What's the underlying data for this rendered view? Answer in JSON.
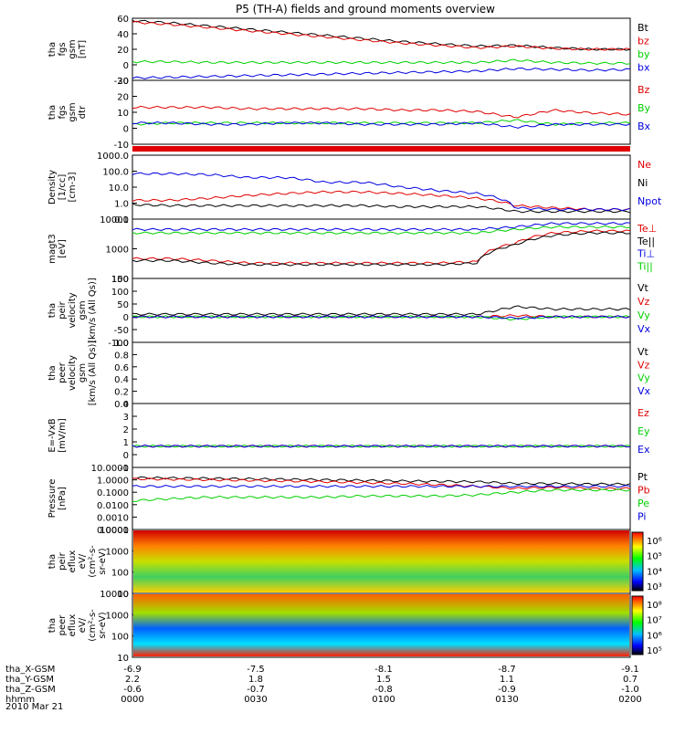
{
  "title": "P5 (TH-A) fields and ground moments overview",
  "date_label": "2010 Mar 21",
  "colors": {
    "black": "#000000",
    "red": "#e00000",
    "green": "#00d000",
    "blue": "#0000e0"
  },
  "colorbar_low": [
    "10⁰",
    "10²",
    "10⁴",
    "10³"
  ],
  "orbit": {
    "rows": [
      {
        "label": "tha_X-GSM",
        "values": [
          "-6.9",
          "-7.5",
          "-8.1",
          "-8.7",
          "-9.1"
        ]
      },
      {
        "label": "tha_Y-GSM",
        "values": [
          "2.2",
          "1.8",
          "1.5",
          "1.1",
          "0.7"
        ]
      },
      {
        "label": "tha_Z-GSM",
        "values": [
          "-0.6",
          "-0.7",
          "-0.8",
          "-0.9",
          "-1.0"
        ]
      },
      {
        "label": "hhmm",
        "values": [
          "0000",
          "0030",
          "0100",
          "0130",
          "0200"
        ]
      }
    ]
  },
  "chart_data": [
    {
      "type": "line",
      "ylabel_lines": [
        "tha",
        "fgs",
        "gsm",
        "[nT]"
      ],
      "ylim": [
        -20,
        60
      ],
      "ticks": [
        "60",
        "40",
        "20",
        "0",
        "-20"
      ],
      "series": [
        {
          "name": "Bt",
          "color": "black",
          "values": [
            57,
            54,
            50,
            46,
            42,
            38,
            34,
            30,
            27,
            24,
            25,
            22,
            20,
            20
          ]
        },
        {
          "name": "bz",
          "color": "red",
          "values": [
            55,
            52,
            48,
            44,
            40,
            36,
            32,
            28,
            25,
            22,
            24,
            21,
            20,
            20
          ]
        },
        {
          "name": "by",
          "color": "green",
          "values": [
            4,
            4,
            3,
            3,
            3,
            3,
            3,
            3,
            3,
            3,
            6,
            3,
            2,
            2
          ]
        },
        {
          "name": "bx",
          "color": "blue",
          "values": [
            -17,
            -16,
            -15,
            -14,
            -13,
            -12,
            -11,
            -10,
            -9,
            -8,
            -5,
            -6,
            -7,
            -6
          ]
        }
      ]
    },
    {
      "type": "line",
      "ylabel_lines": [
        "tha",
        "fgs",
        "gsm",
        "dtr"
      ],
      "ylim": [
        -15,
        30
      ],
      "ticks": [
        "30",
        "20",
        "10",
        "0",
        "-10"
      ],
      "series": [
        {
          "name": "Bz",
          "color": "red",
          "values": [
            11,
            11,
            11,
            10,
            10,
            10,
            10,
            9,
            9,
            8,
            4,
            9,
            7,
            6
          ]
        },
        {
          "name": "By",
          "color": "green",
          "values": [
            -1,
            0,
            0,
            0,
            0,
            0,
            0,
            0,
            0,
            0,
            2,
            -1,
            0,
            0
          ]
        },
        {
          "name": "Bx",
          "color": "blue",
          "values": [
            0,
            0,
            -1,
            -1,
            0,
            0,
            -1,
            -1,
            -1,
            0,
            -3,
            -1,
            -1,
            -1
          ]
        }
      ]
    },
    {
      "type": "line",
      "ylabel_lines": [
        "Density",
        "[1/cc]",
        "[cm-3]"
      ],
      "ylim": [
        0.1,
        1000
      ],
      "ticks": [
        "1000.0",
        "100.0",
        "10.0",
        "1.0",
        "0.1"
      ],
      "series": [
        {
          "name": "Ne",
          "color": "red",
          "values": [
            1.5,
            1.5,
            2,
            3,
            4,
            5,
            5,
            4,
            3,
            2,
            0.7,
            0.5,
            0.4,
            0.4
          ]
        },
        {
          "name": "Ni",
          "color": "black",
          "values": [
            0.8,
            0.7,
            0.7,
            0.7,
            0.7,
            0.7,
            0.7,
            0.6,
            0.6,
            0.6,
            0.3,
            0.3,
            0.3,
            0.3
          ]
        },
        {
          "name": "Npot",
          "color": "blue",
          "values": [
            70,
            70,
            60,
            40,
            40,
            20,
            20,
            10,
            6,
            4,
            0.5,
            0.4,
            0.4,
            0.4
          ]
        }
      ]
    },
    {
      "type": "line",
      "ylabel_lines": [
        "magt3",
        "[eV]"
      ],
      "ylim": [
        10,
        10000
      ],
      "ticks": [
        "10000",
        "1000",
        "100"
      ],
      "series": [
        {
          "name": "Te⊥",
          "color": "red",
          "values": [
            100,
            100,
            80,
            60,
            60,
            60,
            60,
            60,
            60,
            70,
            600,
            2000,
            2500,
            2500
          ]
        },
        {
          "name": "Te||",
          "color": "black",
          "values": [
            80,
            80,
            60,
            50,
            50,
            50,
            50,
            50,
            50,
            60,
            500,
            1500,
            2000,
            2000
          ]
        },
        {
          "name": "Ti⊥",
          "color": "blue",
          "values": [
            3000,
            3000,
            3000,
            3000,
            3000,
            3000,
            3000,
            3000,
            3000,
            3000,
            4000,
            6000,
            6000,
            6000
          ]
        },
        {
          "name": "Ti||",
          "color": "green",
          "values": [
            2000,
            2000,
            2000,
            2000,
            2000,
            2000,
            2000,
            2000,
            2000,
            2000,
            3000,
            4000,
            4000,
            4000
          ]
        }
      ]
    },
    {
      "type": "line",
      "ylabel_lines": [
        "tha",
        "peir",
        "velocity",
        "gsm",
        "[km/s (All Qs)]"
      ],
      "ylim": [
        -100,
        150
      ],
      "ticks": [
        "150",
        "100",
        "50",
        "0",
        "-50",
        "-100"
      ],
      "series": [
        {
          "name": "Vt",
          "color": "black",
          "values": [
            10,
            10,
            10,
            10,
            10,
            10,
            10,
            10,
            10,
            10,
            40,
            30,
            30,
            30
          ]
        },
        {
          "name": "Vz",
          "color": "red",
          "values": [
            0,
            0,
            0,
            0,
            0,
            0,
            0,
            0,
            0,
            0,
            5,
            0,
            0,
            0
          ]
        },
        {
          "name": "Vy",
          "color": "green",
          "values": [
            0,
            0,
            0,
            0,
            0,
            0,
            0,
            0,
            0,
            0,
            -10,
            0,
            0,
            0
          ]
        },
        {
          "name": "Vx",
          "color": "blue",
          "values": [
            0,
            0,
            0,
            0,
            0,
            0,
            0,
            0,
            0,
            0,
            -5,
            0,
            0,
            0
          ]
        }
      ]
    },
    {
      "type": "line",
      "ylabel_lines": [
        "tha",
        "peer",
        "velocity",
        "gsm",
        "[km/s (All Qs)]"
      ],
      "ylim": [
        0,
        1
      ],
      "ticks": [
        "1.0",
        "0.8",
        "0.6",
        "0.4",
        "0.2",
        "0.0"
      ],
      "series": [
        {
          "name": "Vt",
          "color": "black",
          "values": []
        },
        {
          "name": "Vz",
          "color": "red",
          "values": []
        },
        {
          "name": "Vy",
          "color": "green",
          "values": []
        },
        {
          "name": "Vx",
          "color": "blue",
          "values": []
        }
      ]
    },
    {
      "type": "line",
      "ylabel_lines": [
        "E=-VxB",
        "[mV/m]"
      ],
      "ylim": [
        -2,
        4
      ],
      "ticks": [
        "4",
        "3",
        "2",
        "1",
        "0",
        "-1"
      ],
      "series": [
        {
          "name": "Ez",
          "color": "red",
          "values": [
            0,
            0,
            0,
            0,
            0,
            0,
            0,
            0,
            0,
            0,
            0,
            0,
            0,
            0
          ]
        },
        {
          "name": "Ey",
          "color": "green",
          "values": [
            0,
            0,
            0,
            0,
            0,
            0,
            0,
            0,
            0,
            0,
            0,
            0,
            0,
            0
          ]
        },
        {
          "name": "Ex",
          "color": "blue",
          "values": [
            0,
            0,
            0,
            0,
            0,
            0,
            0,
            0,
            0,
            0,
            0,
            0,
            0,
            0
          ]
        }
      ]
    },
    {
      "type": "line",
      "ylabel_lines": [
        "Pressure",
        "[nPa]"
      ],
      "ylim": [
        0.0001,
        10
      ],
      "ticks": [
        "10.0000",
        "1.0000",
        "0.1000",
        "0.0100",
        "0.0010",
        "0.0001"
      ],
      "series": [
        {
          "name": "Pt",
          "color": "black",
          "values": [
            1.5,
            1.4,
            1.3,
            1.2,
            1.1,
            1.0,
            0.9,
            0.8,
            0.75,
            0.7,
            0.5,
            0.5,
            0.45,
            0.45
          ]
        },
        {
          "name": "Pb",
          "color": "red",
          "values": [
            1.2,
            1.1,
            1.0,
            0.9,
            0.8,
            0.7,
            0.6,
            0.5,
            0.4,
            0.3,
            0.2,
            0.25,
            0.2,
            0.2
          ]
        },
        {
          "name": "Pe",
          "color": "green",
          "values": [
            0.02,
            0.03,
            0.04,
            0.04,
            0.04,
            0.04,
            0.05,
            0.05,
            0.05,
            0.06,
            0.1,
            0.15,
            0.15,
            0.15
          ]
        },
        {
          "name": "Pi",
          "color": "blue",
          "values": [
            0.3,
            0.3,
            0.3,
            0.3,
            0.3,
            0.3,
            0.3,
            0.3,
            0.3,
            0.3,
            0.3,
            0.3,
            0.3,
            0.3
          ]
        }
      ]
    },
    {
      "type": "heatmap",
      "ylabel_lines": [
        "tha",
        "peir",
        "eflux",
        "eV/",
        "(cm²-s-",
        "sr-eV)"
      ],
      "ylim": [
        10,
        10000
      ],
      "ticks": [
        "10000",
        "1000",
        "100",
        "10"
      ],
      "colorbar_ticks": [
        "10⁶",
        "10⁵",
        "10⁴",
        "10³"
      ]
    },
    {
      "type": "heatmap",
      "ylabel_lines": [
        "tha",
        "peer",
        "eflux",
        "eV/",
        "(cm²-s-",
        "sr-eV)"
      ],
      "ylim": [
        10,
        10000
      ],
      "ticks": [
        "10000",
        "1000",
        "100",
        "10"
      ],
      "colorbar_ticks": [
        "10⁸",
        "10⁷",
        "10⁶",
        "10⁵"
      ]
    }
  ]
}
